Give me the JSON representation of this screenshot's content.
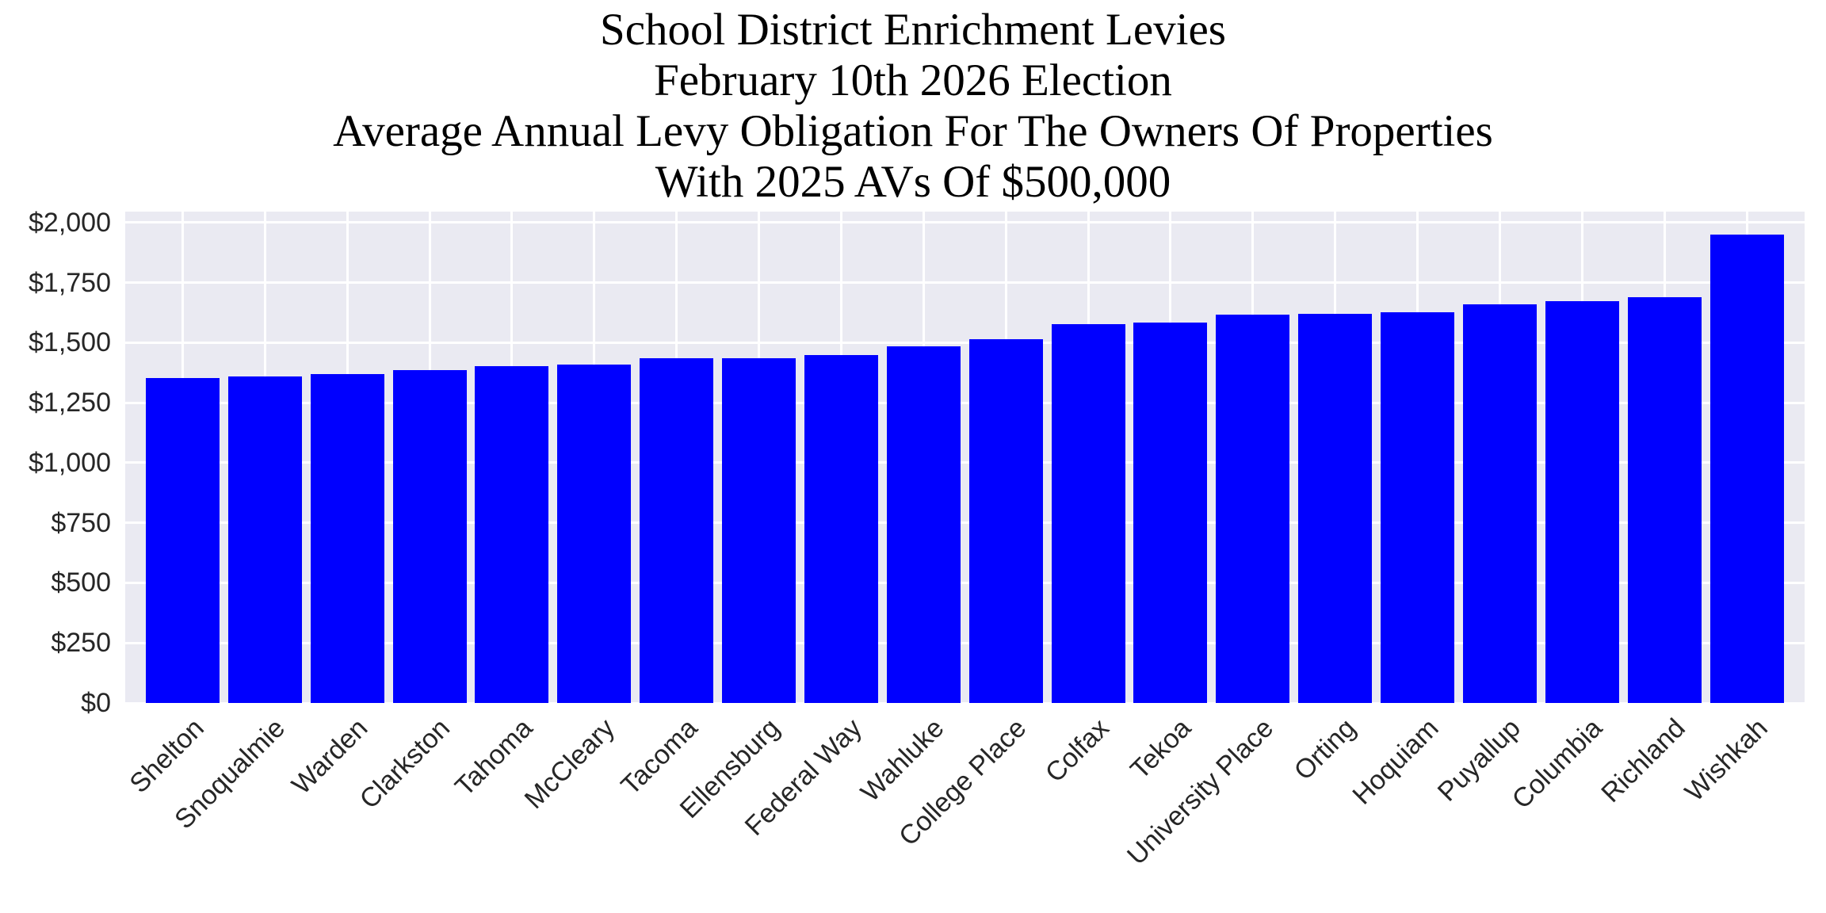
{
  "title": {
    "lines": [
      "School District Enrichment Levies",
      "February 10th 2026 Election",
      "Average Annual Levy Obligation For The Owners Of Properties",
      "With 2025 AVs Of $500,000"
    ]
  },
  "colors": {
    "bar": "#0000ff",
    "axes_background": "#eaeaf2",
    "grid": "#ffffff",
    "tick_text": "#262626",
    "title_text": "#000000"
  },
  "y_ticks": [
    "$0",
    "$250",
    "$500",
    "$750",
    "$1,000",
    "$1,250",
    "$1,500",
    "$1,750",
    "$2,000"
  ],
  "chart_data": {
    "type": "bar",
    "title": "School District Enrichment Levies\nFebruary 10th 2026 Election\nAverage Annual Levy Obligation For The Owners Of Properties\nWith 2025 AVs Of $500,000",
    "xlabel": "",
    "ylabel": "",
    "categories": [
      "Shelton",
      "Snoqualmie",
      "Warden",
      "Clarkston",
      "Tahoma",
      "McCleary",
      "Tacoma",
      "Ellensburg",
      "Federal Way",
      "Wahluke",
      "College Place",
      "Colfax",
      "Tekoa",
      "University Place",
      "Orting",
      "Hoquiam",
      "Puyallup",
      "Columbia",
      "Richland",
      "Wishkah"
    ],
    "values": [
      1353,
      1360,
      1370,
      1386,
      1403,
      1409,
      1436,
      1436,
      1449,
      1485,
      1515,
      1578,
      1584,
      1617,
      1620,
      1627,
      1660,
      1673,
      1690,
      1950
    ],
    "y_tick_values": [
      0,
      250,
      500,
      750,
      1000,
      1250,
      1500,
      1750,
      2000
    ],
    "ylim": [
      0,
      2046
    ],
    "grid": true,
    "legend": null,
    "x_tick_rotation": 45
  }
}
